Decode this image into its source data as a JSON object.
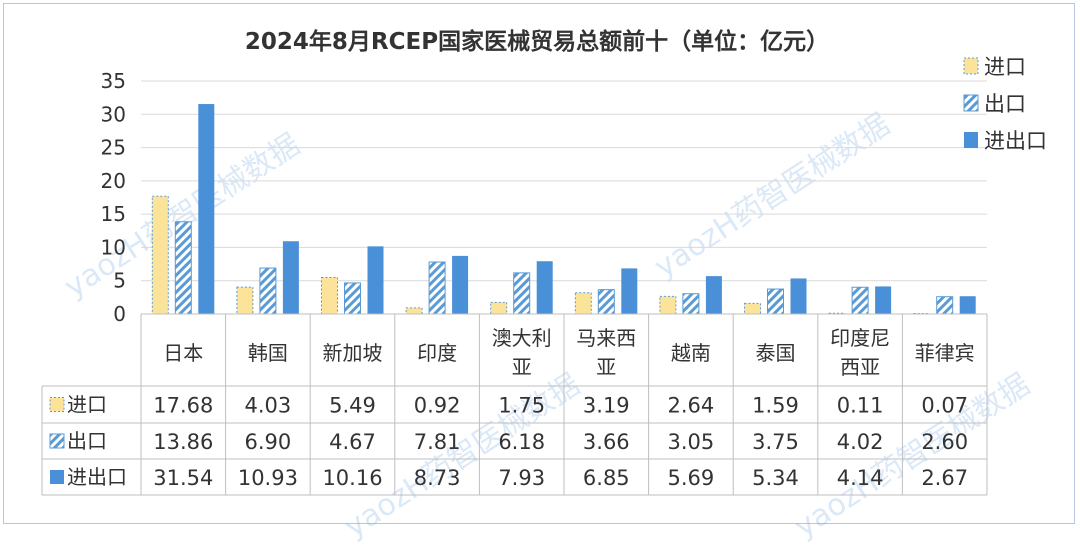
{
  "chart_data": {
    "type": "bar",
    "title": "2024年8月RCEP国家医械贸易总额前十（单位：亿元）",
    "categories": [
      "日本",
      "韩国",
      "新加坡",
      "印度",
      "澳大利亚",
      "马来西亚",
      "越南",
      "泰国",
      "印度尼西亚",
      "菲律宾"
    ],
    "series": [
      {
        "name": "进口",
        "values": [
          17.68,
          4.03,
          5.49,
          0.92,
          1.75,
          3.19,
          2.64,
          1.59,
          0.11,
          0.07
        ],
        "value_labels": [
          "17.68",
          "4.03",
          "5.49",
          "0.92",
          "1.75",
          "3.19",
          "2.64",
          "1.59",
          "0.11",
          "0.07"
        ],
        "color": "#fbe39a",
        "pattern": "dotted-border"
      },
      {
        "name": "出口",
        "values": [
          13.86,
          6.9,
          4.67,
          7.81,
          6.18,
          3.66,
          3.05,
          3.75,
          4.02,
          2.6
        ],
        "value_labels": [
          "13.86",
          "6.90",
          "4.67",
          "7.81",
          "6.18",
          "3.66",
          "3.05",
          "3.75",
          "4.02",
          "2.60"
        ],
        "color": "#5b9bd5",
        "pattern": "diagonal-stripes"
      },
      {
        "name": "进出口",
        "values": [
          31.54,
          10.93,
          10.16,
          8.73,
          7.93,
          6.85,
          5.69,
          5.34,
          4.14,
          2.67
        ],
        "value_labels": [
          "31.54",
          "10.93",
          "10.16",
          "8.73",
          "7.93",
          "6.85",
          "5.69",
          "5.34",
          "4.14",
          "2.67"
        ],
        "color": "#4a90d9",
        "pattern": "solid"
      }
    ],
    "y_ticks": [
      "0",
      "5",
      "10",
      "15",
      "20",
      "25",
      "30",
      "35"
    ],
    "ylim": [
      0,
      35
    ],
    "grid": true,
    "legend_position": "top-right",
    "data_table": true
  },
  "watermark": "yaozH药智医械数据"
}
